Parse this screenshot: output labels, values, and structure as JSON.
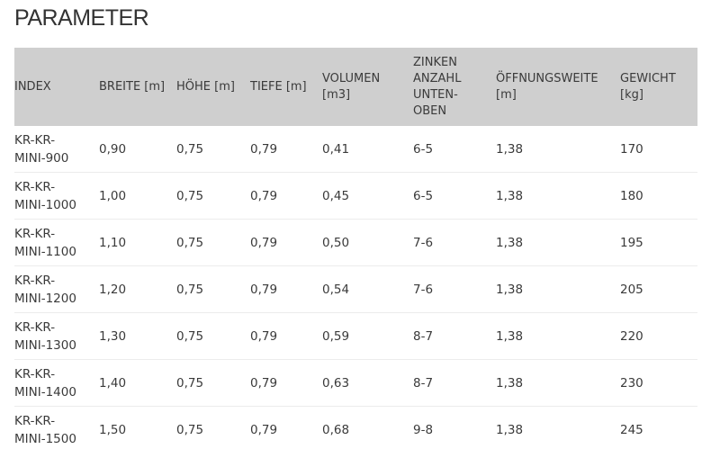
{
  "title": "PARAMETER",
  "table": {
    "headers": [
      "INDEX",
      "BREITE [m]",
      "HÖHE [m]",
      "TIEFE [m]",
      "VOLUMEN [m3]",
      "ZINKEN ANZAHL UNTEN-OBEN",
      "ÖFFNUNGSWEITE [m]",
      "GEWICHT [kg]"
    ],
    "rows": [
      [
        "KR-KR-MINI-900",
        "0,90",
        "0,75",
        "0,79",
        "0,41",
        "6-5",
        "1,38",
        "170"
      ],
      [
        "KR-KR-MINI-1000",
        "1,00",
        "0,75",
        "0,79",
        "0,45",
        "6-5",
        "1,38",
        "180"
      ],
      [
        "KR-KR-MINI-1100",
        "1,10",
        "0,75",
        "0,79",
        "0,50",
        "7-6",
        "1,38",
        "195"
      ],
      [
        "KR-KR-MINI-1200",
        "1,20",
        "0,75",
        "0,79",
        "0,54",
        "7-6",
        "1,38",
        "205"
      ],
      [
        "KR-KR-MINI-1300",
        "1,30",
        "0,75",
        "0,79",
        "0,59",
        "8-7",
        "1,38",
        "220"
      ],
      [
        "KR-KR-MINI-1400",
        "1,40",
        "0,75",
        "0,79",
        "0,63",
        "8-7",
        "1,38",
        "230"
      ],
      [
        "KR-KR-MINI-1500",
        "1,50",
        "0,75",
        "0,79",
        "0,68",
        "9-8",
        "1,38",
        "245"
      ]
    ]
  },
  "colors": {
    "header_bg": "#cfcfcf",
    "text": "#3a3a3a"
  }
}
